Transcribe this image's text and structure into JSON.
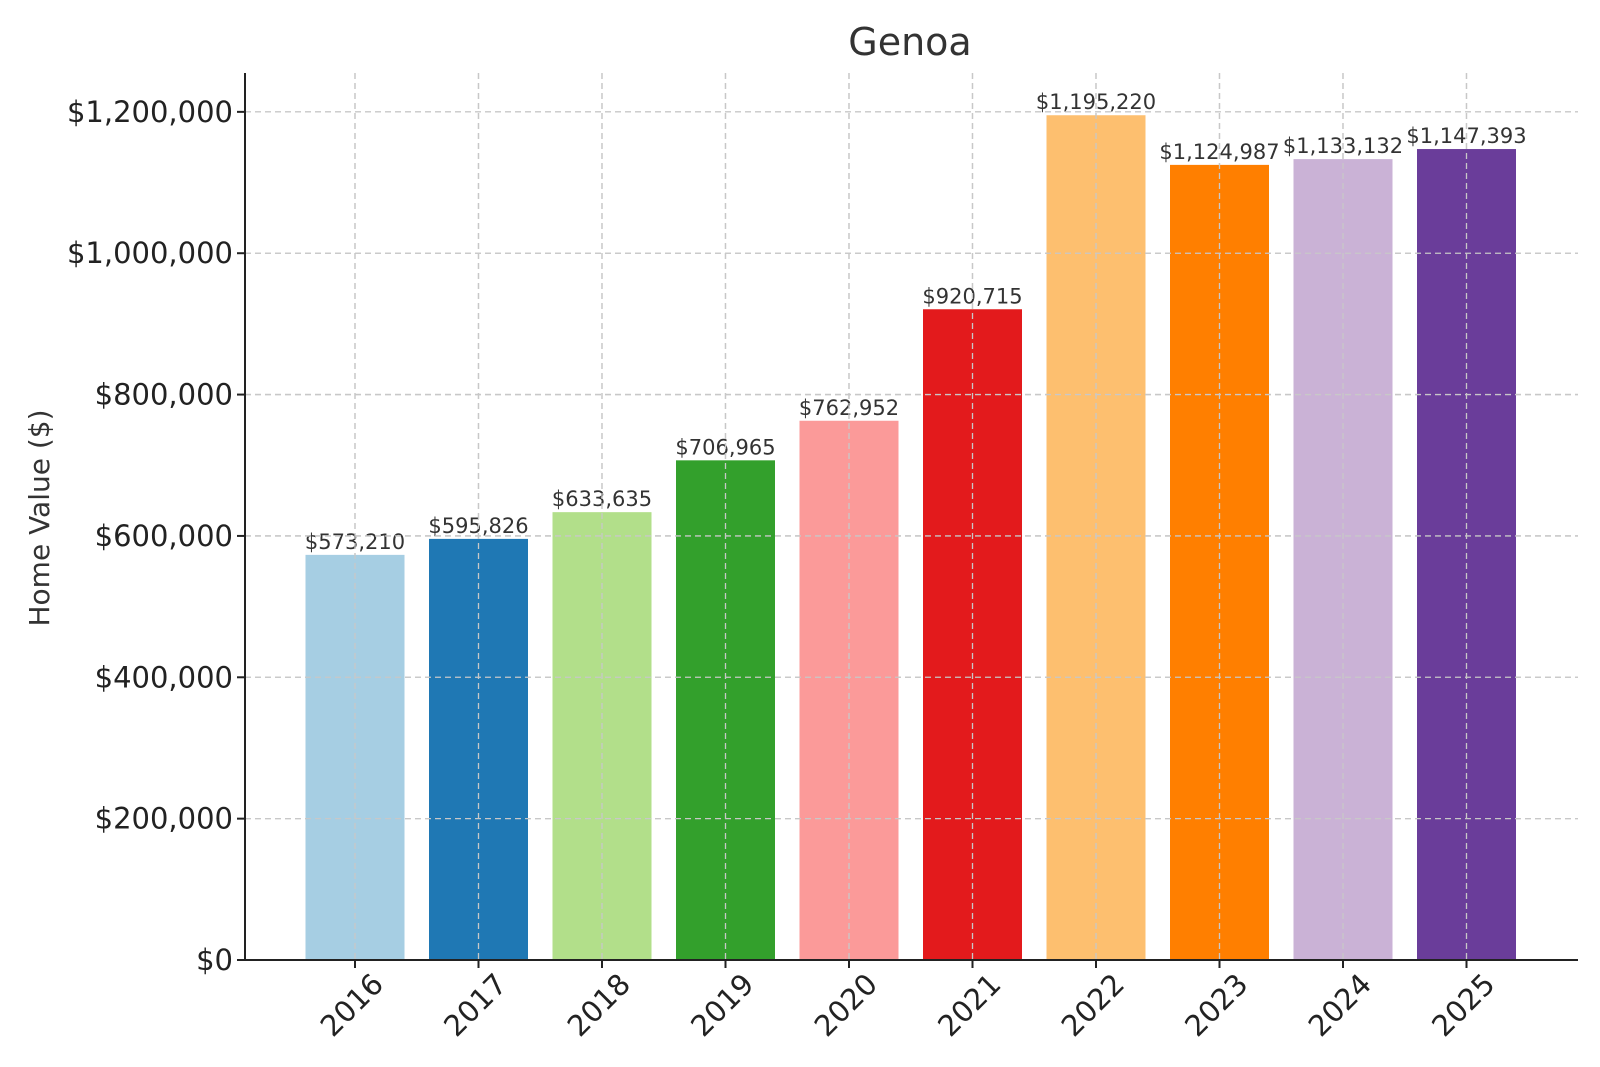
{
  "chart_data": {
    "type": "bar",
    "title": "Genoa",
    "xlabel": "",
    "ylabel": "Home Value ($)",
    "categories": [
      "2016",
      "2017",
      "2018",
      "2019",
      "2020",
      "2021",
      "2022",
      "2023",
      "2024",
      "2025"
    ],
    "values": [
      573210,
      595826,
      633635,
      706965,
      762952,
      920715,
      1195220,
      1124987,
      1133132,
      1147393
    ],
    "value_labels": [
      "$573,210",
      "$595,826",
      "$633,635",
      "$706,965",
      "$762,952",
      "$920,715",
      "$1,195,220",
      "$1,124,987",
      "$1,133,132",
      "$1,147,393"
    ],
    "colors": [
      "#a6cee3",
      "#1f78b4",
      "#b2df8a",
      "#33a02c",
      "#fb9a99",
      "#e31a1c",
      "#fdbf6f",
      "#ff7f00",
      "#cab2d6",
      "#6a3d9a"
    ],
    "yticks": [
      0,
      200000,
      400000,
      600000,
      800000,
      1000000,
      1200000
    ],
    "ytick_labels": [
      "$0",
      "$200,000",
      "$400,000",
      "$600,000",
      "$800,000",
      "$1,000,000",
      "$1,200,000"
    ],
    "ylim": [
      0,
      1254981
    ],
    "grid": true,
    "legend": "none"
  }
}
